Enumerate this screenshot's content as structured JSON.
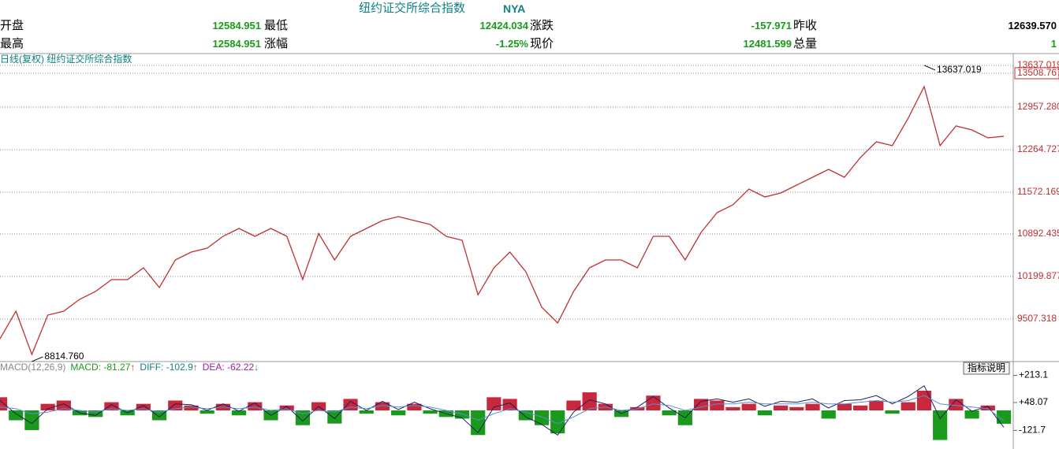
{
  "header": {
    "title": "纽约证交所综合指数",
    "code": "NYA",
    "rows": [
      [
        {
          "label": "开盘",
          "value": "12584.951"
        },
        {
          "label": "最低",
          "value": "12424.034"
        },
        {
          "label": "涨跌",
          "value": "-157.971"
        },
        {
          "label": "昨收",
          "value": "12639.570"
        }
      ],
      [
        {
          "label": "最高",
          "value": "12584.951"
        },
        {
          "label": "涨幅",
          "value": "-1.25%"
        },
        {
          "label": "现价",
          "value": "12481.599"
        },
        {
          "label": "总量",
          "value": "1"
        }
      ]
    ]
  },
  "chart_data": [
    {
      "type": "line",
      "subtitle": "日线(复权)  纽约证交所综合指数",
      "color": "#c03030",
      "grid": true,
      "values": [
        9186,
        9635,
        8930,
        9571,
        9635,
        9828,
        9956,
        10148,
        10148,
        10341,
        10020,
        10469,
        10597,
        10661,
        10854,
        10982,
        10854,
        10982,
        10854,
        10150,
        10900,
        10469,
        10854,
        10982,
        11110,
        11174,
        11110,
        11046,
        10854,
        10789,
        9900,
        10341,
        10597,
        10277,
        9699,
        9443,
        9956,
        10341,
        10469,
        10469,
        10341,
        10854,
        10854,
        10469,
        10918,
        11238,
        11367,
        11623,
        11495,
        11559,
        11687,
        11815,
        11944,
        11815,
        12136,
        12393,
        12329,
        12778,
        13291,
        12329,
        12650,
        12585,
        12457,
        12482
      ],
      "ylim": [
        8827,
        13675
      ],
      "yticks": [
        13637.019,
        13508.767,
        {
          "value": 12957.28,
          "label": "12957.280"
        },
        12264.727,
        11572.169,
        10892.435,
        10199.877,
        9507.318
      ],
      "annotations": [
        {
          "label": "13637.019",
          "value": 13637.019
        },
        {
          "label": "8814.760",
          "value": 8814.76
        }
      ]
    },
    {
      "type": "macd",
      "title": "MACD(12,26,9)",
      "button": "指标说明",
      "readouts": [
        {
          "text": "MACD: -81.27",
          "arrow": "↑",
          "color": "#1a9a1a"
        },
        {
          "text": "DIFF: -102.9",
          "arrow": "↑",
          "color": "#108080"
        },
        {
          "text": "DEA: -62.22",
          "arrow": "↓",
          "color": "#a020a0"
        }
      ],
      "up_color": "#c8283c",
      "down_color": "#1a9a1a",
      "histogram": [
        80,
        -60,
        -120,
        40,
        60,
        -30,
        -40,
        50,
        -30,
        40,
        -60,
        60,
        30,
        -20,
        40,
        -30,
        50,
        -60,
        30,
        -90,
        50,
        -80,
        70,
        -20,
        50,
        -30,
        40,
        -20,
        -40,
        -50,
        -150,
        80,
        70,
        -60,
        -90,
        -140,
        60,
        110,
        40,
        -40,
        20,
        90,
        -30,
        -90,
        70,
        60,
        20,
        40,
        -30,
        30,
        20,
        40,
        -50,
        40,
        30,
        60,
        -20,
        50,
        120,
        -180,
        70,
        -50,
        30,
        -81.27
      ],
      "series": [
        {
          "color": "#202060",
          "values": [
            60,
            -20,
            -80,
            10,
            40,
            -15,
            -30,
            35,
            -15,
            30,
            -40,
            40,
            35,
            0,
            40,
            -5,
            45,
            -30,
            25,
            -65,
            25,
            -50,
            55,
            0,
            55,
            5,
            50,
            10,
            -20,
            -45,
            -135,
            20,
            45,
            -40,
            -85,
            -150,
            -10,
            65,
            40,
            -20,
            20,
            85,
            15,
            -45,
            55,
            70,
            50,
            70,
            25,
            55,
            50,
            70,
            15,
            60,
            65,
            90,
            40,
            85,
            150,
            -50,
            65,
            -5,
            25,
            -102.9
          ]
        },
        {
          "color": "#5a8fd0",
          "values": [
            20,
            10,
            -20,
            -10,
            10,
            0,
            -10,
            10,
            0,
            10,
            -10,
            10,
            20,
            10,
            20,
            10,
            20,
            0,
            10,
            -20,
            0,
            -10,
            20,
            10,
            30,
            20,
            30,
            20,
            0,
            -20,
            -60,
            -20,
            10,
            -10,
            -40,
            -80,
            -40,
            10,
            20,
            0,
            10,
            40,
            30,
            0,
            20,
            40,
            40,
            50,
            40,
            40,
            40,
            50,
            40,
            40,
            50,
            60,
            50,
            60,
            90,
            40,
            30,
            20,
            10,
            -62.22
          ]
        }
      ],
      "ylim": [
        -235,
        283
      ],
      "yticks": [
        {
          "value": 213.1,
          "label": "+213.1"
        },
        {
          "value": 48.07,
          "label": "+48.07"
        },
        -121.7
      ]
    }
  ]
}
